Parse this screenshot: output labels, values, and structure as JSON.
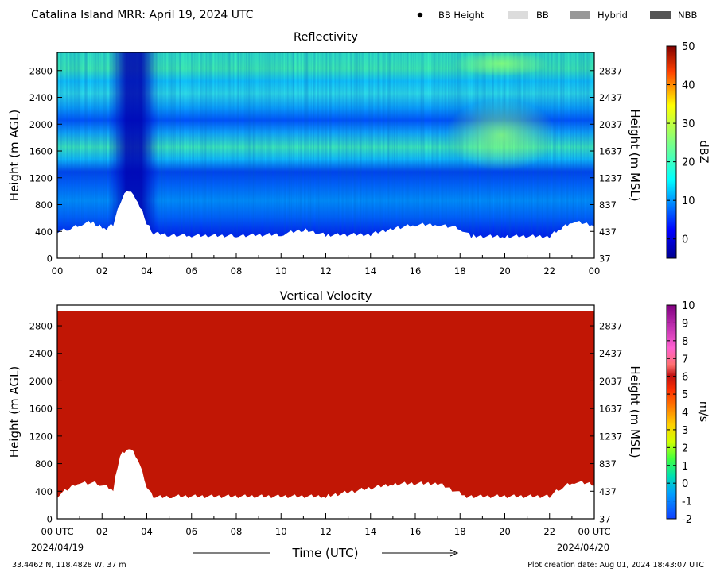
{
  "header": {
    "title": "Catalina Island MRR:  April 19, 2024 UTC",
    "legend": [
      {
        "label": "BB Height",
        "marker": "dot",
        "color": "#000000"
      },
      {
        "label": "BB",
        "marker": "swatch",
        "color": "#dcdcdc"
      },
      {
        "label": "Hybrid",
        "marker": "swatch",
        "color": "#999999"
      },
      {
        "label": "NBB",
        "marker": "swatch",
        "color": "#555555"
      }
    ]
  },
  "x_axis": {
    "label": "Time (UTC)",
    "ticks": [
      "00",
      "02",
      "04",
      "06",
      "08",
      "10",
      "12",
      "14",
      "16",
      "18",
      "20",
      "22",
      "00"
    ],
    "bottom_ticks": [
      "00 UTC",
      "02",
      "04",
      "06",
      "08",
      "10",
      "12",
      "14",
      "16",
      "18",
      "20",
      "22",
      "00 UTC"
    ],
    "start_date": "2024/04/19",
    "end_date": "2024/04/20"
  },
  "footer": {
    "location": "33.4462 N, 118.4828 W, 37 m",
    "creation": "Plot creation date: Aug 01, 2024 18:43:07 UTC"
  },
  "chart_data": [
    {
      "type": "heatmap",
      "title": "Reflectivity",
      "ylabel": "Height (m AGL)",
      "ylabel_right": "Height (m MSL)",
      "yticks": [
        0,
        400,
        800,
        1200,
        1600,
        2000,
        2400,
        2800
      ],
      "yticks_right": [
        "37",
        "437",
        "837",
        "1237",
        "1637",
        "2037",
        "2437",
        "2837"
      ],
      "ylim": [
        0,
        3100
      ],
      "xlim_hours": [
        0,
        24
      ],
      "colorbar": {
        "label": "dBZ",
        "range": [
          -5,
          50
        ],
        "ticks": [
          0,
          10,
          20,
          30,
          40,
          50
        ],
        "colormap": "jet"
      },
      "echo_base_m": [
        [
          0,
          370
        ],
        [
          0.5,
          410
        ],
        [
          1,
          480
        ],
        [
          1.5,
          510
        ],
        [
          1.8,
          470
        ],
        [
          2.2,
          420
        ],
        [
          2.5,
          480
        ],
        [
          2.8,
          800
        ],
        [
          3.1,
          1000
        ],
        [
          3.4,
          950
        ],
        [
          3.7,
          750
        ],
        [
          4.0,
          500
        ],
        [
          4.3,
          350
        ],
        [
          5,
          320
        ],
        [
          6,
          310
        ],
        [
          8,
          310
        ],
        [
          10,
          330
        ],
        [
          11,
          400
        ],
        [
          12,
          320
        ],
        [
          14,
          330
        ],
        [
          15,
          420
        ],
        [
          16,
          470
        ],
        [
          17,
          480
        ],
        [
          18,
          420
        ],
        [
          18.5,
          300
        ],
        [
          20,
          300
        ],
        [
          22,
          300
        ],
        [
          22.5,
          420
        ],
        [
          23,
          520
        ],
        [
          24,
          470
        ]
      ],
      "layers": [
        {
          "height_m": 2800,
          "dbz": 14
        },
        {
          "height_m": 2400,
          "dbz": 12
        },
        {
          "height_m": 2000,
          "dbz": 6
        },
        {
          "height_m": 1600,
          "dbz": 14
        },
        {
          "height_m": 1200,
          "dbz": 4
        },
        {
          "height_m": 800,
          "dbz": 8
        },
        {
          "height_m": 400,
          "dbz": 2
        }
      ]
    },
    {
      "type": "heatmap",
      "title": "Vertical Velocity",
      "ylabel": "Height (m AGL)",
      "ylabel_right": "Height (m MSL)",
      "yticks": [
        0,
        400,
        800,
        1200,
        1600,
        2000,
        2400,
        2800
      ],
      "yticks_right": [
        "37",
        "437",
        "837",
        "1237",
        "1637",
        "2037",
        "2437",
        "2837"
      ],
      "ylim": [
        0,
        3100
      ],
      "xlim_hours": [
        0,
        24
      ],
      "colorbar": {
        "label": "m/s",
        "range": [
          -2,
          10
        ],
        "ticks": [
          -2,
          -1,
          0,
          1,
          2,
          3,
          4,
          5,
          6,
          7,
          8,
          9,
          10
        ]
      },
      "fill_color": "#c11605",
      "echo_base_m": [
        [
          0,
          300
        ],
        [
          0.9,
          500
        ],
        [
          1.8,
          490
        ],
        [
          2.5,
          400
        ],
        [
          2.8,
          900
        ],
        [
          3.2,
          1010
        ],
        [
          3.6,
          850
        ],
        [
          4.0,
          450
        ],
        [
          4.3,
          300
        ],
        [
          5,
          300
        ],
        [
          12,
          300
        ],
        [
          15,
          480
        ],
        [
          17,
          490
        ],
        [
          18.3,
          300
        ],
        [
          22,
          300
        ],
        [
          22.5,
          420
        ],
        [
          23,
          510
        ],
        [
          24,
          480
        ]
      ]
    }
  ]
}
